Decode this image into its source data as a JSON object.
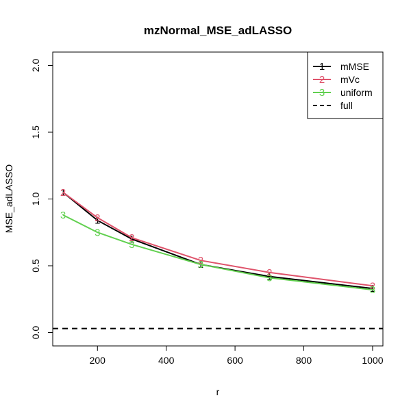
{
  "chart_data": {
    "type": "line",
    "title": "mzNormal_MSE_adLASSO",
    "xlabel": "r",
    "ylabel": "MSE_adLASSO",
    "x": [
      100,
      200,
      300,
      500,
      700,
      1000
    ],
    "xlim": [
      70,
      1030
    ],
    "ylim": [
      -0.1,
      2.1
    ],
    "xticks": [
      200,
      400,
      600,
      800,
      1000
    ],
    "yticks": [
      0.0,
      0.5,
      1.0,
      1.5,
      2.0
    ],
    "xtick_labels": [
      "200",
      "400",
      "600",
      "800",
      "1000"
    ],
    "ytick_labels": [
      "0.0",
      "0.5",
      "1.0",
      "1.5",
      "2.0"
    ],
    "grid": false,
    "legend_position": "top-right",
    "series": [
      {
        "name": "mMSE",
        "marker": "1",
        "color": "#000000",
        "line": "solid",
        "values": [
          1.05,
          0.84,
          0.7,
          0.51,
          0.42,
          0.33
        ]
      },
      {
        "name": "mVc",
        "marker": "2",
        "color": "#df536b",
        "line": "solid",
        "values": [
          1.05,
          0.86,
          0.71,
          0.54,
          0.45,
          0.35
        ]
      },
      {
        "name": "uniform",
        "marker": "3",
        "color": "#61d04f",
        "line": "solid",
        "values": [
          0.88,
          0.75,
          0.66,
          0.51,
          0.41,
          0.32
        ]
      }
    ],
    "reference_lines": [
      {
        "name": "full",
        "y": 0.03,
        "color": "#000000",
        "line": "dashed"
      }
    ]
  }
}
